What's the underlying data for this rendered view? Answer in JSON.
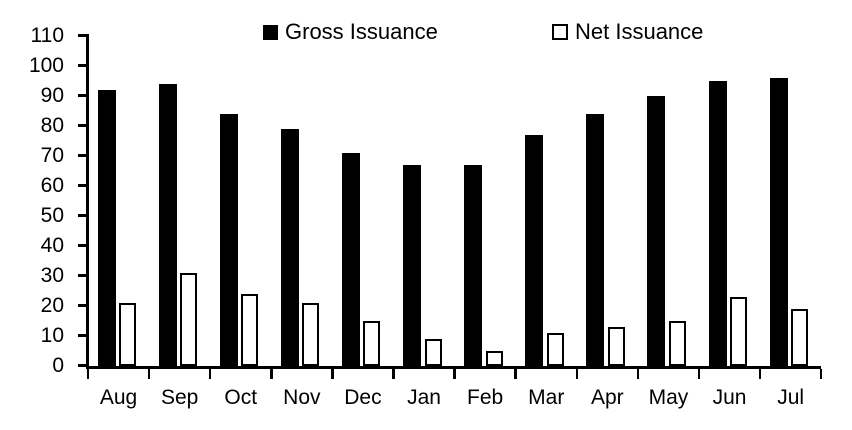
{
  "chart_data": {
    "type": "bar",
    "title": "",
    "categories": [
      "Aug",
      "Sep",
      "Oct",
      "Nov",
      "Dec",
      "Jan",
      "Feb",
      "Mar",
      "Apr",
      "May",
      "Jun",
      "Jul"
    ],
    "series": [
      {
        "name": "Gross Issuance",
        "color": "#000000",
        "values": [
          92,
          94,
          84,
          79,
          71,
          67,
          67,
          77,
          84,
          90,
          95,
          96
        ]
      },
      {
        "name": "Net Issuance",
        "color": "#ffffff",
        "outline_color": "#000000",
        "values": [
          21,
          31,
          24,
          21,
          15,
          9,
          5,
          11,
          13,
          15,
          23,
          19
        ]
      }
    ],
    "xlabel": "",
    "ylabel": "",
    "ylim": [
      0,
      110
    ],
    "ytick_step": 10,
    "ytick_labels": [
      "0",
      "10",
      "20",
      "30",
      "40",
      "50",
      "60",
      "70",
      "80",
      "90",
      "100",
      "110"
    ],
    "grid": false,
    "legend_position": "top",
    "axis_color": "#000000",
    "text_color": "#000000",
    "background_color": "#ffffff"
  }
}
